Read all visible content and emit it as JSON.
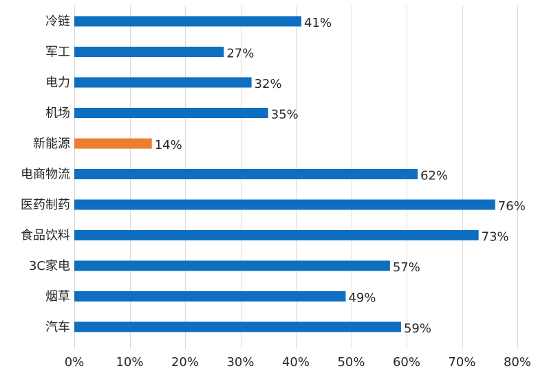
{
  "chart_data": {
    "type": "bar",
    "orientation": "horizontal",
    "categories": [
      "冷链",
      "军工",
      "电力",
      "机场",
      "新能源",
      "电商物流",
      "医药制药",
      "食品饮料",
      "3C家电",
      "烟草",
      "汽车"
    ],
    "values": [
      41,
      27,
      32,
      35,
      14,
      62,
      76,
      73,
      57,
      49,
      59
    ],
    "value_labels": [
      "41%",
      "27%",
      "32%",
      "35%",
      "14%",
      "62%",
      "76%",
      "73%",
      "57%",
      "49%",
      "59%"
    ],
    "bar_colors": [
      "#0e6fc0",
      "#0e6fc0",
      "#0e6fc0",
      "#0e6fc0",
      "#ed7d31",
      "#0e6fc0",
      "#0e6fc0",
      "#0e6fc0",
      "#0e6fc0",
      "#0e6fc0",
      "#0e6fc0"
    ],
    "xlim": [
      0,
      80
    ],
    "xticks": [
      0,
      10,
      20,
      30,
      40,
      50,
      60,
      70,
      80
    ],
    "xtick_labels": [
      "0%",
      "10%",
      "20%",
      "30%",
      "40%",
      "50%",
      "60%",
      "70%",
      "80%"
    ],
    "title": "",
    "xlabel": "",
    "ylabel": "",
    "grid": "vertical",
    "legend": "none"
  },
  "colors": {
    "primary": "#0e6fc0",
    "highlight": "#ed7d31",
    "grid": "#d9d9d9",
    "text": "#262626"
  }
}
